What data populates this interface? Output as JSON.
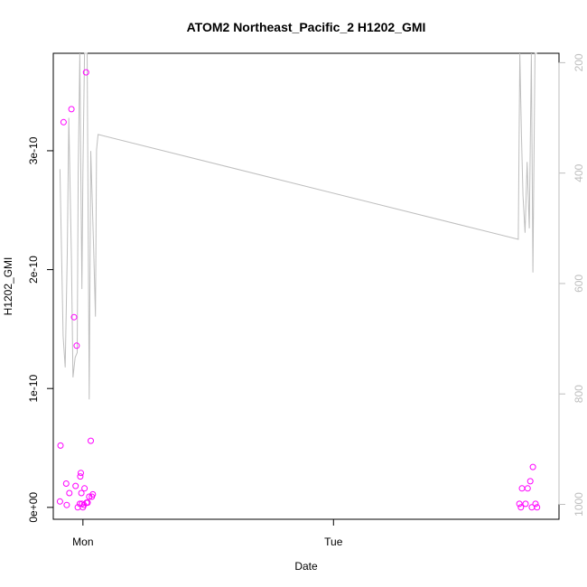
{
  "chart_data": {
    "type": "scatter",
    "title": "ATOM2 Northeast_Pacific_2 H1202_GMI",
    "xlabel": "Date",
    "ylabel": "H1202_GMI",
    "x_unit": "hours since Monday 00:00",
    "xlim": [
      -2.84,
      45.6
    ],
    "ylim": [
      -1e-11,
      3.82e-10
    ],
    "x_ticks": [
      {
        "value": 0,
        "label": "Mon"
      },
      {
        "value": 24,
        "label": "Tue"
      }
    ],
    "y_ticks": [
      {
        "value": 0,
        "label": "0e+00"
      },
      {
        "value": 1e-10,
        "label": "1e-10"
      },
      {
        "value": 2e-10,
        "label": "2e-10"
      },
      {
        "value": 3e-10,
        "label": "3e-10"
      }
    ],
    "y2_ticks": [
      {
        "value": 200,
        "label": "200"
      },
      {
        "value": 400,
        "label": "400"
      },
      {
        "value": 600,
        "label": "600"
      },
      {
        "value": 800,
        "label": "800"
      },
      {
        "value": 1000,
        "label": "1000"
      }
    ],
    "y2lim": [
      1027,
      183
    ],
    "colors": {
      "points": "#ff00ff",
      "line": "#bebebe",
      "axes": "#000000",
      "right_axis": "#bebebe"
    },
    "series": [
      {
        "kind": "points",
        "axis": "left",
        "points": [
          [
            -2.15,
            5.2e-11
          ],
          [
            -2.2,
            5e-12
          ],
          [
            -1.85,
            3.24e-10
          ],
          [
            -1.6,
            2e-11
          ],
          [
            -1.55,
            2e-12
          ],
          [
            -1.3,
            1.2e-11
          ],
          [
            -1.1,
            3.35e-10
          ],
          [
            -0.85,
            1.6e-10
          ],
          [
            -0.7,
            1.8e-11
          ],
          [
            -0.6,
            1.36e-10
          ],
          [
            -0.5,
            0.0
          ],
          [
            -0.3,
            3e-12
          ],
          [
            -0.25,
            2.6e-11
          ],
          [
            -0.2,
            2.9e-11
          ],
          [
            -0.15,
            1.2e-11
          ],
          [
            -0.1,
            3e-12
          ],
          [
            0.0,
            0.0
          ],
          [
            0.1,
            2e-12
          ],
          [
            0.15,
            1.6e-11
          ],
          [
            0.3,
            3.66e-10
          ],
          [
            0.35,
            4e-12
          ],
          [
            0.45,
            4e-12
          ],
          [
            0.6,
            9e-12
          ],
          [
            0.75,
            5.6e-11
          ],
          [
            0.85,
            9e-12
          ],
          [
            0.95,
            1.1e-11
          ],
          [
            41.8,
            3e-12
          ],
          [
            41.95,
            0.0
          ],
          [
            42.05,
            1.6e-11
          ],
          [
            42.4,
            3e-12
          ],
          [
            42.6,
            1.6e-11
          ],
          [
            42.85,
            2.2e-11
          ],
          [
            43.0,
            0.0
          ],
          [
            43.1,
            3.4e-11
          ],
          [
            43.35,
            3e-12
          ],
          [
            43.5,
            0.0
          ]
        ]
      },
      {
        "kind": "line",
        "axis": "right",
        "points": [
          [
            -2.2,
            393
          ],
          [
            -1.9,
            695
          ],
          [
            -1.7,
            752
          ],
          [
            -1.5,
            545
          ],
          [
            -1.35,
            300
          ],
          [
            -1.1,
            555
          ],
          [
            -0.95,
            770
          ],
          [
            -0.75,
            734
          ],
          [
            -0.55,
            725
          ],
          [
            -0.45,
            400
          ],
          [
            -0.3,
            183
          ],
          [
            -0.2,
            400
          ],
          [
            -0.1,
            610
          ],
          [
            0.0,
            400
          ],
          [
            0.15,
            183
          ],
          [
            0.4,
            183
          ],
          [
            0.6,
            810
          ],
          [
            0.75,
            360
          ],
          [
            1.0,
            520
          ],
          [
            1.2,
            660
          ],
          [
            1.3,
            358
          ],
          [
            1.45,
            330
          ],
          [
            41.7,
            520
          ],
          [
            41.85,
            183
          ],
          [
            42.0,
            330
          ],
          [
            42.15,
            440
          ],
          [
            42.35,
            508
          ],
          [
            42.55,
            380
          ],
          [
            42.75,
            500
          ],
          [
            42.95,
            183
          ],
          [
            43.1,
            580
          ],
          [
            43.3,
            183
          ],
          [
            43.5,
            183
          ]
        ]
      }
    ]
  }
}
